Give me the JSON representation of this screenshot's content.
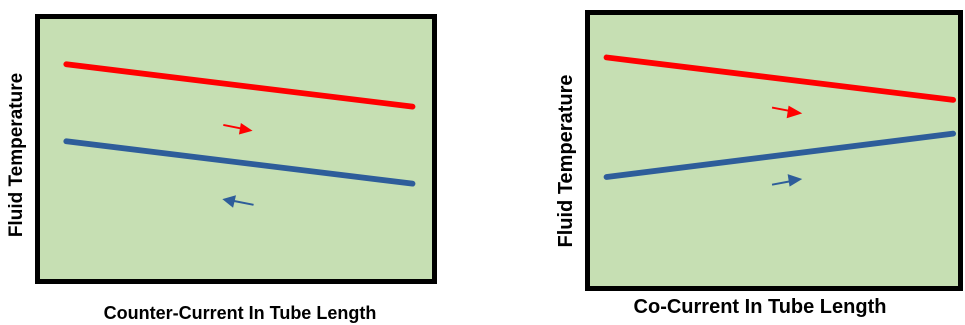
{
  "colors": {
    "plot_background": "#c6dfb3",
    "frame": "#000000",
    "hot_fluid": "#ff0000",
    "cold_fluid": "#2e5d9a"
  },
  "panels": [
    {
      "id": "counter-current",
      "y_label": "Fluid Temperature",
      "x_label": "Counter-Current  In Tube Length",
      "hot_line": "falls left to right",
      "hot_arrow": "right",
      "cold_line": "falls left to right",
      "cold_arrow": "left"
    },
    {
      "id": "co-current",
      "y_label": "Fluid Temperature",
      "x_label": "Co-Current In Tube Length",
      "hot_line": "falls left to right",
      "hot_arrow": "right",
      "cold_line": "rises left to right",
      "cold_arrow": "right"
    }
  ]
}
